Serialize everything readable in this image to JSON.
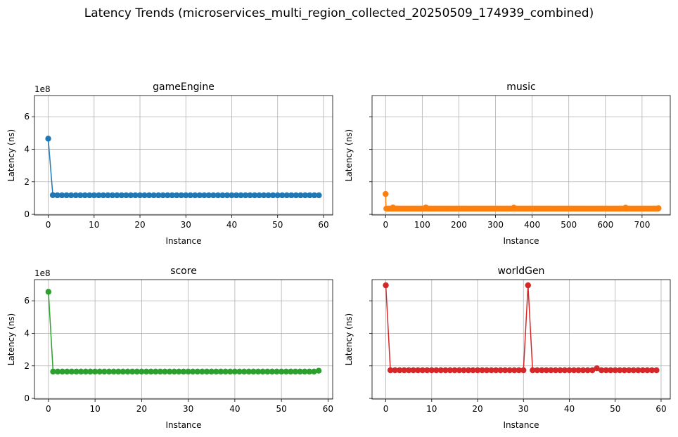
{
  "title": "Latency Trends (microservices_multi_region_collected_20250509_174939_combined)",
  "chart_data": [
    {
      "type": "line",
      "title": "gameEngine",
      "xlabel": "Instance",
      "ylabel": "Latency (ns)",
      "offset_text": "1e8",
      "color": "#1f77b4",
      "xlim": [
        -3,
        62
      ],
      "ylim": [
        -0.04,
        7.3
      ],
      "xticks": [
        0,
        10,
        20,
        30,
        40,
        50,
        60
      ],
      "xtick_labels": [
        "0",
        "10",
        "20",
        "30",
        "40",
        "50",
        "60"
      ],
      "yticks": [
        0,
        2,
        4,
        6
      ],
      "ytick_labels": [
        "0",
        "2",
        "4",
        "6"
      ],
      "show_ytick_labels": true,
      "grid": true,
      "series": [
        {
          "x": [
            0,
            1,
            2,
            3,
            4,
            5,
            6,
            7,
            8,
            9,
            10,
            11,
            12,
            13,
            14,
            15,
            16,
            17,
            18,
            19,
            20,
            21,
            22,
            23,
            24,
            25,
            26,
            27,
            28,
            29,
            30,
            31,
            32,
            33,
            34,
            35,
            36,
            37,
            38,
            39,
            40,
            41,
            42,
            43,
            44,
            45,
            46,
            47,
            48,
            49,
            50,
            51,
            52,
            53,
            54,
            55,
            56,
            57,
            58,
            59
          ],
          "y": [
            4.65,
            1.18,
            1.17,
            1.17,
            1.17,
            1.17,
            1.17,
            1.17,
            1.17,
            1.17,
            1.17,
            1.17,
            1.17,
            1.17,
            1.17,
            1.17,
            1.17,
            1.17,
            1.17,
            1.17,
            1.17,
            1.17,
            1.17,
            1.17,
            1.17,
            1.17,
            1.17,
            1.17,
            1.17,
            1.17,
            1.17,
            1.17,
            1.17,
            1.17,
            1.17,
            1.17,
            1.17,
            1.17,
            1.17,
            1.17,
            1.17,
            1.17,
            1.17,
            1.17,
            1.17,
            1.17,
            1.17,
            1.17,
            1.17,
            1.17,
            1.17,
            1.17,
            1.17,
            1.17,
            1.17,
            1.17,
            1.17,
            1.17,
            1.17,
            1.17
          ]
        }
      ]
    },
    {
      "type": "line",
      "title": "music",
      "xlabel": "Instance",
      "ylabel": "Latency (ns)",
      "offset_text": "",
      "color": "#ff7f0e",
      "xlim": [
        -37,
        777
      ],
      "ylim": [
        -0.04,
        7.3
      ],
      "xticks": [
        0,
        100,
        200,
        300,
        400,
        500,
        600,
        700
      ],
      "xtick_labels": [
        "0",
        "100",
        "200",
        "300",
        "400",
        "500",
        "600",
        "700"
      ],
      "yticks": [
        0,
        2,
        4,
        6
      ],
      "ytick_labels": [
        "",
        "",
        "",
        ""
      ],
      "show_ytick_labels": false,
      "grid": true,
      "series": [
        {
          "x": [
            0,
            1,
            745
          ],
          "y": [
            1.25,
            0.35,
            0.35
          ],
          "dense_baseline": 0.35,
          "points_count": 746,
          "spikes": [
            [
              0,
              1.25
            ],
            [
              20,
              0.42
            ],
            [
              110,
              0.42
            ],
            [
              350,
              0.41
            ],
            [
              655,
              0.41
            ],
            [
              745,
              0.38
            ]
          ]
        }
      ]
    },
    {
      "type": "line",
      "title": "score",
      "xlabel": "Instance",
      "ylabel": "Latency (ns)",
      "offset_text": "1e8",
      "color": "#2ca02c",
      "xlim": [
        -3,
        61
      ],
      "ylim": [
        -0.04,
        7.3
      ],
      "xticks": [
        0,
        10,
        20,
        30,
        40,
        50,
        60
      ],
      "xtick_labels": [
        "0",
        "10",
        "20",
        "30",
        "40",
        "50",
        "60"
      ],
      "yticks": [
        0,
        2,
        4,
        6
      ],
      "ytick_labels": [
        "0",
        "2",
        "4",
        "6"
      ],
      "show_ytick_labels": true,
      "grid": true,
      "series": [
        {
          "x": [
            0,
            1,
            2,
            3,
            4,
            5,
            6,
            7,
            8,
            9,
            10,
            11,
            12,
            13,
            14,
            15,
            16,
            17,
            18,
            19,
            20,
            21,
            22,
            23,
            24,
            25,
            26,
            27,
            28,
            29,
            30,
            31,
            32,
            33,
            34,
            35,
            36,
            37,
            38,
            39,
            40,
            41,
            42,
            43,
            44,
            45,
            46,
            47,
            48,
            49,
            50,
            51,
            52,
            53,
            54,
            55,
            56,
            57,
            58
          ],
          "y": [
            6.55,
            1.65,
            1.65,
            1.65,
            1.65,
            1.65,
            1.65,
            1.65,
            1.65,
            1.65,
            1.65,
            1.65,
            1.65,
            1.65,
            1.65,
            1.65,
            1.65,
            1.65,
            1.65,
            1.65,
            1.65,
            1.65,
            1.65,
            1.65,
            1.65,
            1.65,
            1.65,
            1.65,
            1.65,
            1.65,
            1.65,
            1.65,
            1.65,
            1.65,
            1.65,
            1.65,
            1.65,
            1.65,
            1.65,
            1.65,
            1.65,
            1.65,
            1.65,
            1.65,
            1.65,
            1.65,
            1.65,
            1.65,
            1.65,
            1.65,
            1.65,
            1.65,
            1.65,
            1.65,
            1.65,
            1.65,
            1.65,
            1.65,
            1.7
          ]
        }
      ]
    },
    {
      "type": "line",
      "title": "worldGen",
      "xlabel": "Instance",
      "ylabel": "Latency (ns)",
      "offset_text": "",
      "color": "#d62728",
      "xlim": [
        -3,
        62
      ],
      "ylim": [
        -0.04,
        7.3
      ],
      "xticks": [
        0,
        10,
        20,
        30,
        40,
        50,
        60
      ],
      "xtick_labels": [
        "0",
        "10",
        "20",
        "30",
        "40",
        "50",
        "60"
      ],
      "yticks": [
        0,
        2,
        4,
        6
      ],
      "ytick_labels": [
        "",
        "",
        "",
        ""
      ],
      "show_ytick_labels": false,
      "grid": true,
      "series": [
        {
          "x": [
            0,
            1,
            2,
            3,
            4,
            5,
            6,
            7,
            8,
            9,
            10,
            11,
            12,
            13,
            14,
            15,
            16,
            17,
            18,
            19,
            20,
            21,
            22,
            23,
            24,
            25,
            26,
            27,
            28,
            29,
            30,
            31,
            32,
            33,
            34,
            35,
            36,
            37,
            38,
            39,
            40,
            41,
            42,
            43,
            44,
            45,
            46,
            47,
            48,
            49,
            50,
            51,
            52,
            53,
            54,
            55,
            56,
            57,
            58,
            59
          ],
          "y": [
            6.95,
            1.73,
            1.73,
            1.73,
            1.73,
            1.73,
            1.73,
            1.73,
            1.73,
            1.73,
            1.73,
            1.73,
            1.73,
            1.73,
            1.73,
            1.73,
            1.73,
            1.73,
            1.73,
            1.73,
            1.73,
            1.73,
            1.73,
            1.73,
            1.73,
            1.73,
            1.73,
            1.73,
            1.73,
            1.73,
            1.73,
            6.95,
            1.73,
            1.73,
            1.73,
            1.73,
            1.73,
            1.73,
            1.73,
            1.73,
            1.73,
            1.73,
            1.73,
            1.73,
            1.73,
            1.73,
            1.85,
            1.73,
            1.73,
            1.73,
            1.73,
            1.73,
            1.73,
            1.73,
            1.73,
            1.73,
            1.73,
            1.73,
            1.73,
            1.73
          ]
        }
      ]
    }
  ]
}
